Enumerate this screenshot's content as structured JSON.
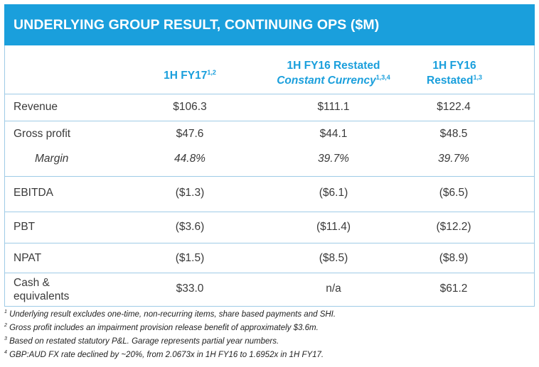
{
  "title": "UNDERLYING GROUP RESULT, CONTINUING OPS ($M)",
  "columns": [
    {
      "line1": "",
      "line2": "1H FY17",
      "sup": "1,2",
      "italic": false
    },
    {
      "line1": "1H FY16 Restated",
      "line2": "Constant Currency",
      "sup": "1,3,4",
      "italic": true
    },
    {
      "line1": "1H FY16",
      "line2": "Restated",
      "sup": "1,3",
      "italic": false
    }
  ],
  "rows": [
    {
      "label": "Revenue",
      "values": [
        "$106.3",
        "$111.1",
        "$122.4"
      ]
    },
    {
      "label": "Gross profit",
      "values": [
        "$47.6",
        "$44.1",
        "$48.5"
      ]
    },
    {
      "label": "Margin",
      "values": [
        "44.8%",
        "39.7%",
        "39.7%"
      ]
    },
    {
      "label": "EBITDA",
      "values": [
        "($1.3)",
        "($6.1)",
        "($6.5)"
      ]
    },
    {
      "label": "PBT",
      "values": [
        "($3.6)",
        "($11.4)",
        "($12.2)"
      ]
    },
    {
      "label": "NPAT",
      "values": [
        "($1.5)",
        "($8.5)",
        "($8.9)"
      ]
    },
    {
      "label_line1": "Cash &",
      "label_line2": "equivalents",
      "values": [
        "$33.0",
        "n/a",
        "$61.2"
      ]
    }
  ],
  "footnotes": [
    {
      "num": "1",
      "text": "Underlying result excludes one-time, non-recurring items, share based payments and SHI."
    },
    {
      "num": "2",
      "text": "Gross profit includes an impairment provision release benefit of approximately $3.6m."
    },
    {
      "num": "3",
      "text": "Based on restated statutory P&L. Garage represents partial year numbers."
    },
    {
      "num": "4",
      "text": "GBP:AUD FX rate declined by ~20%, from 2.0673x in 1H FY16 to 1.6952x in 1H FY17."
    }
  ],
  "colors": {
    "accent": "#1a9fdc",
    "rule": "#9fcbe6",
    "text": "#3a3a3a"
  }
}
